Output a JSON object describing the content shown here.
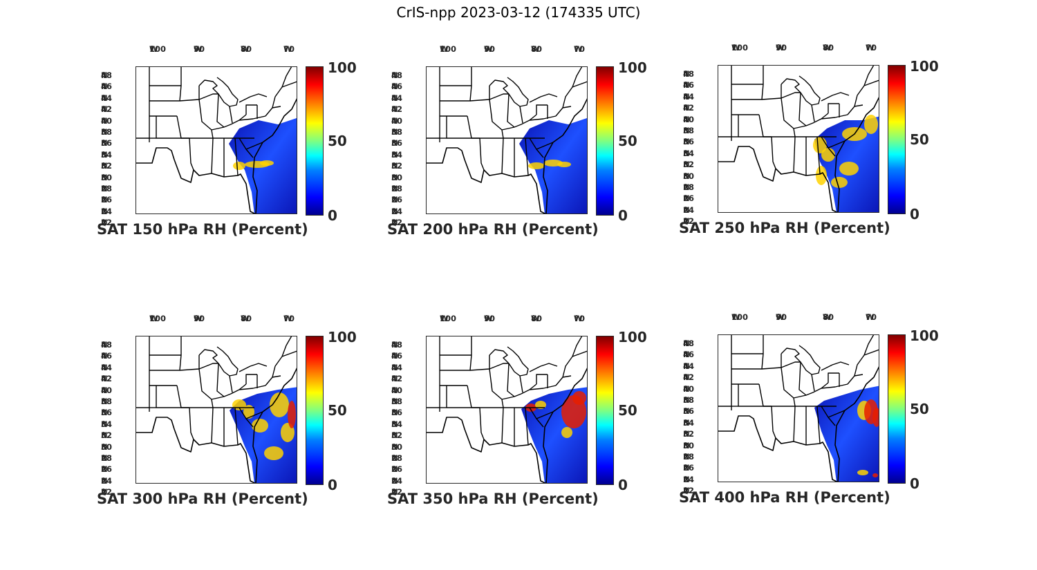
{
  "title": "CrIS-npp 2023-03-12 (174335 UTC)",
  "lon_ticks": [
    {
      "num": "100",
      "dir": "W"
    },
    {
      "num": "90",
      "dir": "W"
    },
    {
      "num": "80",
      "dir": "W"
    },
    {
      "num": "70",
      "dir": "W"
    }
  ],
  "lat_ticks": [
    {
      "num": "48",
      "dir": "N"
    },
    {
      "num": "46",
      "dir": "N"
    },
    {
      "num": "44",
      "dir": "N"
    },
    {
      "num": "42",
      "dir": "N"
    },
    {
      "num": "40",
      "dir": "N"
    },
    {
      "num": "38",
      "dir": "N"
    },
    {
      "num": "36",
      "dir": "N"
    },
    {
      "num": "34",
      "dir": "N"
    },
    {
      "num": "32",
      "dir": "N"
    },
    {
      "num": "30",
      "dir": "N"
    },
    {
      "num": "28",
      "dir": "N"
    },
    {
      "num": "26",
      "dir": "N"
    },
    {
      "num": "24",
      "dir": "N"
    },
    {
      "num": "22",
      "dir": "N"
    }
  ],
  "colorbar": {
    "max": "100",
    "mid": "50",
    "min": "0"
  },
  "panels": [
    {
      "title": "SAT 150 hPa RH (Percent)"
    },
    {
      "title": "SAT 200 hPa RH (Percent)"
    },
    {
      "title": "SAT 250 hPa RH (Percent)"
    },
    {
      "title": "SAT 300 hPa RH (Percent)"
    },
    {
      "title": "SAT 350 hPa RH (Percent)"
    },
    {
      "title": "SAT 400 hPa RH (Percent)"
    }
  ],
  "colors": {
    "border": "#000000",
    "swath_dark": "#0a14b4",
    "swath_mid": "#1e50ff",
    "moist": "#ffd200",
    "very_moist": "#e61e00"
  }
}
